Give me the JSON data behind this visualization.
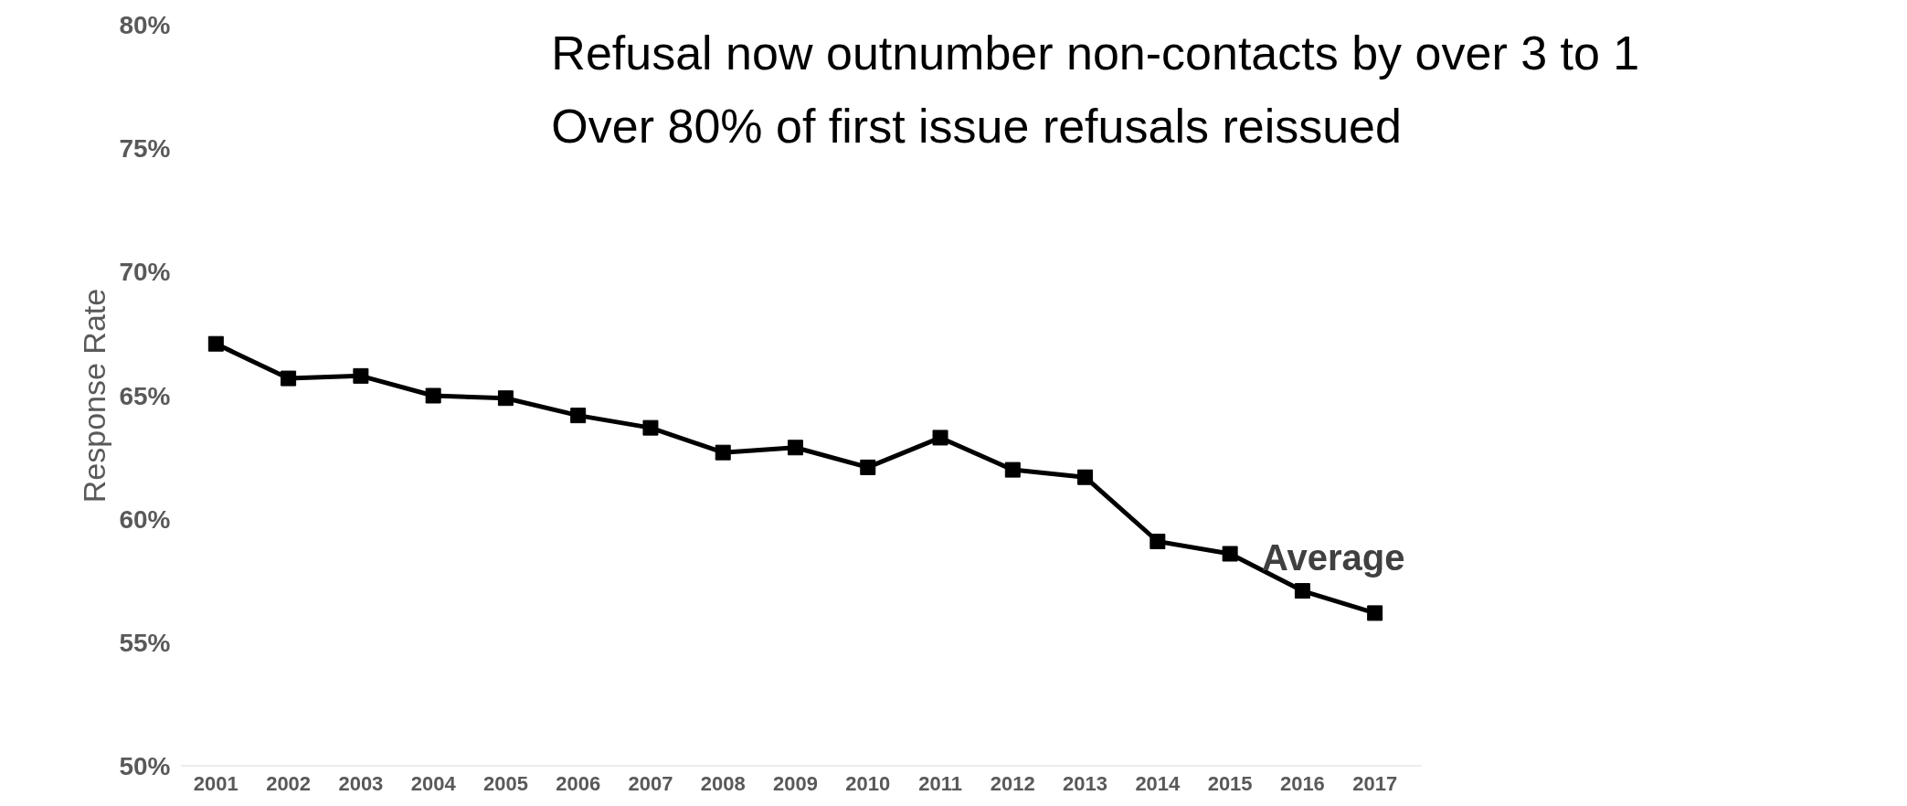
{
  "chart_data": {
    "type": "line",
    "title": "Refusal now outnumber non-contacts by over 3 to 1",
    "subtitle": "Over 80% of first issue refusals reissued",
    "ylabel": "Response Rate",
    "categories": [
      "2001",
      "2002",
      "2003",
      "2004",
      "2005",
      "2006",
      "2007",
      "2008",
      "2009",
      "2010",
      "2011",
      "2012",
      "2013",
      "2014",
      "2015",
      "2016",
      "2017"
    ],
    "series": [
      {
        "name": "Average",
        "color": "#000000",
        "values": [
          67.1,
          65.7,
          65.8,
          65.0,
          64.9,
          64.2,
          63.7,
          62.7,
          62.9,
          62.1,
          63.3,
          62.0,
          61.7,
          59.1,
          58.6,
          57.1,
          56.2
        ]
      }
    ],
    "ylim": [
      50,
      80
    ],
    "yticks": [
      {
        "value": 50,
        "label": "50%"
      },
      {
        "value": 55,
        "label": "55%"
      },
      {
        "value": 60,
        "label": "60%"
      },
      {
        "value": 65,
        "label": "65%"
      },
      {
        "value": 70,
        "label": "70%"
      },
      {
        "value": 75,
        "label": "75%"
      },
      {
        "value": 80,
        "label": "80%"
      }
    ],
    "grid": false,
    "legend": false,
    "marker": "square",
    "line_style": "solid"
  }
}
